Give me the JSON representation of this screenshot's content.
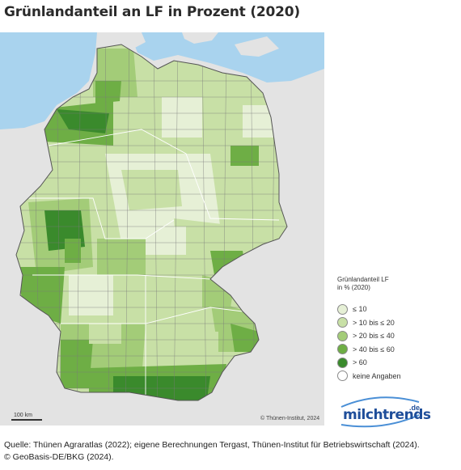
{
  "title": "Grünlandanteil an LF in Prozent (2020)",
  "map": {
    "copyright": "© Thünen-Institut, 2024",
    "scale_label": "100 km"
  },
  "legend": {
    "title_line1": "Grünlandanteil LF",
    "title_line2": "in % (2020)",
    "items": [
      {
        "label": "≤ 10",
        "color": "#e6f0d6"
      },
      {
        "label": "> 10 bis ≤ 20",
        "color": "#c8e0a6"
      },
      {
        "label": "> 20 bis ≤ 40",
        "color": "#a3cc78"
      },
      {
        "label": "> 40 bis ≤ 60",
        "color": "#6eae45"
      },
      {
        "label": "> 60",
        "color": "#3a8a2c"
      },
      {
        "label": "keine Angaben",
        "color": "#ffffff"
      }
    ]
  },
  "logo": {
    "name": "milchtrends",
    "suffix": ".de"
  },
  "source": {
    "line1": "Quelle:  Thünen Agraratlas (2022); eigene Berechnungen Tergast, Thünen-Institut für Betriebswirtschaft (2024).",
    "line2": "© GeoBasis-DE/BKG (2024)."
  },
  "colors": {
    "sea": "#a9d3ee",
    "neighbor_land": "#e3e3e3",
    "border": "#666666"
  }
}
